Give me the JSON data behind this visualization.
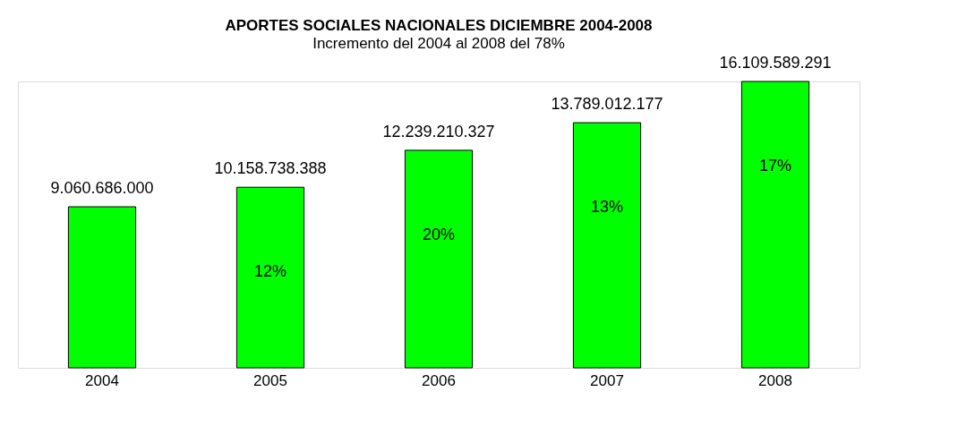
{
  "chart_data": {
    "type": "bar",
    "title": "APORTES SOCIALES NACIONALES DICIEMBRE  2004-2008",
    "subtitle": "Incremento del 2004 al 2008 del 78%",
    "categories": [
      "2004",
      "2005",
      "2006",
      "2007",
      "2008"
    ],
    "values": [
      9060686000,
      10158738388,
      12239210327,
      13789012177,
      16109589291
    ],
    "value_labels": [
      "9.060.686.000",
      "10.158.738.388",
      "12.239.210.327",
      "13.789.012.177",
      "16.109.589.291"
    ],
    "color": "#00ff00",
    "grid": false,
    "annotations": [
      "12%",
      "20%",
      "13%",
      "17%"
    ]
  }
}
